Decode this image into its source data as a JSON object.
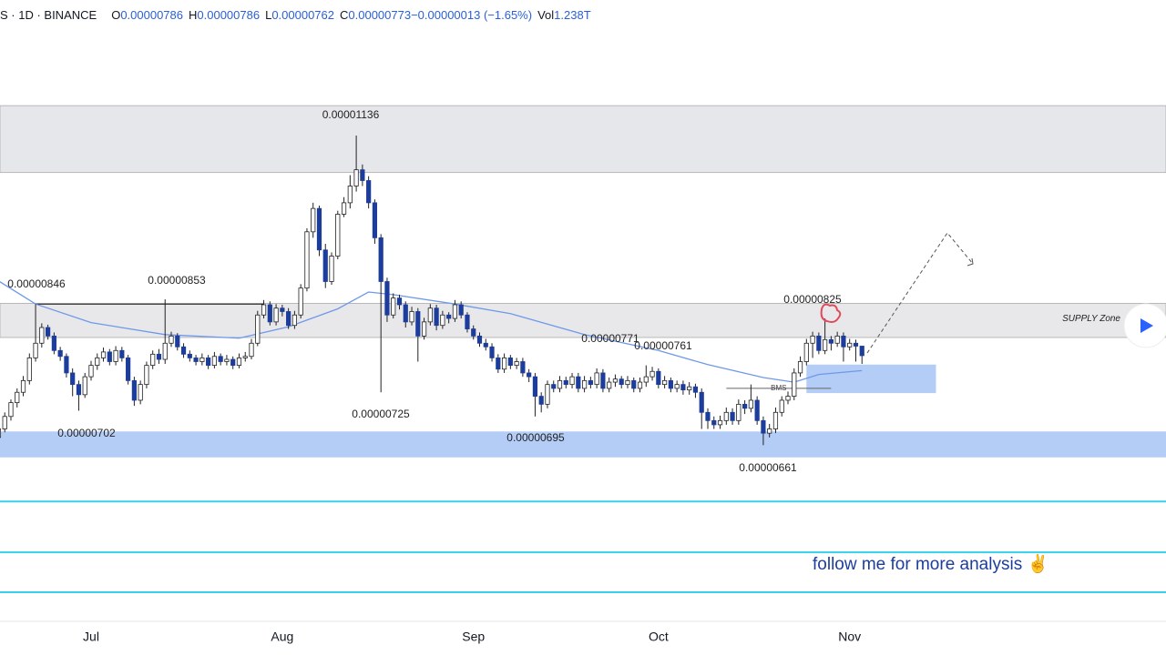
{
  "header": {
    "symbol": "S · 1D · BINANCE",
    "items": [
      {
        "k": "O",
        "v": "0.00000786"
      },
      {
        "k": "H",
        "v": "0.00000786"
      },
      {
        "k": "L",
        "v": "0.00000762"
      },
      {
        "k": "C",
        "v": "0.00000773"
      },
      {
        "k": "",
        "v": "−0.00000013 (−1.65%)"
      },
      {
        "k": "Vol",
        "v": "1.238T"
      }
    ]
  },
  "chart_data": {
    "type": "candlestick",
    "log": true,
    "ylim": [
      4.88e-06,
      1.44e-05
    ],
    "xlim": [
      0.23,
      189.3
    ],
    "up_color": "#ffffff",
    "down_color": "#1d3d9c",
    "xticks": [
      {
        "value": 15,
        "label": "Jul"
      },
      {
        "value": 46,
        "label": "Aug"
      },
      {
        "value": 77,
        "label": "Sep"
      },
      {
        "value": 107,
        "label": "Oct"
      },
      {
        "value": 138,
        "label": "Nov"
      }
    ],
    "ohlc": [
      [
        6.7e-06,
        6.84e-06,
        6.6e-06,
        6.8e-06
      ],
      [
        6.8e-06,
        7e-06,
        6.76e-06,
        6.95e-06
      ],
      [
        6.95e-06,
        7.16e-06,
        6.9e-06,
        7.12e-06
      ],
      [
        7.12e-06,
        7.3e-06,
        7.06e-06,
        7.25e-06
      ],
      [
        7.25e-06,
        7.46e-06,
        7.2e-06,
        7.4e-06
      ],
      [
        7.4e-06,
        7.76e-06,
        7.35e-06,
        7.7e-06
      ],
      [
        7.7e-06,
        8.46e-06,
        7.65e-06,
        7.9e-06
      ],
      [
        7.9e-06,
        8.18e-06,
        7.84e-06,
        8.12e-06
      ],
      [
        8.12e-06,
        8.16e-06,
        7.95e-06,
        8e-06
      ],
      [
        8e-06,
        8.05e-06,
        7.75e-06,
        7.8e-06
      ],
      [
        7.8e-06,
        7.85e-06,
        7.66e-06,
        7.72e-06
      ],
      [
        7.72e-06,
        7.76e-06,
        7.44e-06,
        7.5e-06
      ],
      [
        7.5e-06,
        7.56e-06,
        7.2e-06,
        7.35e-06
      ],
      [
        7.35e-06,
        7.4e-06,
        7.02e-06,
        7.22e-06
      ],
      [
        7.22e-06,
        7.5e-06,
        7.18e-06,
        7.45e-06
      ],
      [
        7.45e-06,
        7.66e-06,
        7.4e-06,
        7.6e-06
      ],
      [
        7.6e-06,
        7.76e-06,
        7.54e-06,
        7.7e-06
      ],
      [
        7.7e-06,
        7.84e-06,
        7.65e-06,
        7.78e-06
      ],
      [
        7.78e-06,
        7.82e-06,
        7.6e-06,
        7.65e-06
      ],
      [
        7.65e-06,
        7.86e-06,
        7.6e-06,
        7.8e-06
      ],
      [
        7.8e-06,
        7.85e-06,
        7.65e-06,
        7.7e-06
      ],
      [
        7.7e-06,
        7.74e-06,
        7.35e-06,
        7.4e-06
      ],
      [
        7.4e-06,
        7.45e-06,
        7.08e-06,
        7.15e-06
      ],
      [
        7.15e-06,
        7.4e-06,
        7.1e-06,
        7.35e-06
      ],
      [
        7.35e-06,
        7.65e-06,
        7.3e-06,
        7.6e-06
      ],
      [
        7.6e-06,
        7.8e-06,
        7.55e-06,
        7.75e-06
      ],
      [
        7.75e-06,
        7.82e-06,
        7.62e-06,
        7.68e-06
      ],
      [
        7.68e-06,
        8.53e-06,
        7.62e-06,
        7.9e-06
      ],
      [
        7.9e-06,
        8.06e-06,
        7.85e-06,
        8e-06
      ],
      [
        8e-06,
        8.04e-06,
        7.8e-06,
        7.85e-06
      ],
      [
        7.85e-06,
        7.9e-06,
        7.7e-06,
        7.75e-06
      ],
      [
        7.75e-06,
        7.8e-06,
        7.65e-06,
        7.7e-06
      ],
      [
        7.7e-06,
        7.74e-06,
        7.6e-06,
        7.65e-06
      ],
      [
        7.65e-06,
        7.76e-06,
        7.6e-06,
        7.7e-06
      ],
      [
        7.7e-06,
        7.74e-06,
        7.55e-06,
        7.6e-06
      ],
      [
        7.6e-06,
        7.78e-06,
        7.56e-06,
        7.72e-06
      ],
      [
        7.72e-06,
        7.76e-06,
        7.6e-06,
        7.65e-06
      ],
      [
        7.65e-06,
        7.74e-06,
        7.6e-06,
        7.68e-06
      ],
      [
        7.68e-06,
        7.72e-06,
        7.55e-06,
        7.6e-06
      ],
      [
        7.6e-06,
        7.76e-06,
        7.56e-06,
        7.7e-06
      ],
      [
        7.7e-06,
        7.78e-06,
        7.65e-06,
        7.72e-06
      ],
      [
        7.72e-06,
        7.96e-06,
        7.68e-06,
        7.9e-06
      ],
      [
        7.9e-06,
        8.36e-06,
        7.86e-06,
        8.3e-06
      ],
      [
        8.3e-06,
        8.52e-06,
        8.25e-06,
        8.45e-06
      ],
      [
        8.45e-06,
        8.5e-06,
        8.15e-06,
        8.2e-06
      ],
      [
        8.2e-06,
        8.46e-06,
        8.15e-06,
        8.4e-06
      ],
      [
        8.4e-06,
        8.45e-06,
        8.28e-06,
        8.35e-06
      ],
      [
        8.35e-06,
        8.4e-06,
        8.1e-06,
        8.15e-06
      ],
      [
        8.15e-06,
        8.36e-06,
        8.1e-06,
        8.3e-06
      ],
      [
        8.3e-06,
        8.76e-06,
        8.25e-06,
        8.7e-06
      ],
      [
        8.7e-06,
        9.66e-06,
        8.65e-06,
        9.6e-06
      ],
      [
        9.6e-06,
        1.01e-05,
        9.5e-06,
        1e-05
      ],
      [
        1e-05,
        1.005e-05,
        9.2e-06,
        9.3e-06
      ],
      [
        9.3e-06,
        9.4e-06,
        8.7e-06,
        8.8e-06
      ],
      [
        8.8e-06,
        9.26e-06,
        8.75e-06,
        9.2e-06
      ],
      [
        9.2e-06,
        9.96e-06,
        9.15e-06,
        9.9e-06
      ],
      [
        9.9e-06,
        1.02e-05,
        9.85e-06,
        1.01e-05
      ],
      [
        1.01e-05,
        1.06e-05,
        1e-05,
        1.04e-05
      ],
      [
        1.04e-05,
        1.136e-05,
        1.03e-05,
        1.07e-05
      ],
      [
        1.07e-05,
        1.08e-05,
        1.04e-05,
        1.05e-05
      ],
      [
        1.05e-05,
        1.058e-05,
        1e-05,
        1.01e-05
      ],
      [
        1.01e-05,
        1.016e-05,
        9.4e-06,
        9.5e-06
      ],
      [
        9.5e-06,
        9.56e-06,
        7.25e-06,
        8.8e-06
      ],
      [
        8.8e-06,
        8.86e-06,
        8.2e-06,
        8.3e-06
      ],
      [
        8.3e-06,
        8.62e-06,
        8.25e-06,
        8.55e-06
      ],
      [
        8.55e-06,
        8.6e-06,
        8.38e-06,
        8.45e-06
      ],
      [
        8.45e-06,
        8.5e-06,
        8.12e-06,
        8.2e-06
      ],
      [
        8.2e-06,
        8.42e-06,
        8.15e-06,
        8.35e-06
      ],
      [
        8.35e-06,
        8.4e-06,
        7.65e-06,
        8e-06
      ],
      [
        8e-06,
        8.26e-06,
        7.95e-06,
        8.2e-06
      ],
      [
        8.2e-06,
        8.46e-06,
        8.15e-06,
        8.4e-06
      ],
      [
        8.4e-06,
        8.45e-06,
        8.08e-06,
        8.15e-06
      ],
      [
        8.15e-06,
        8.36e-06,
        8.1e-06,
        8.3e-06
      ],
      [
        8.3e-06,
        8.34e-06,
        8.18e-06,
        8.25e-06
      ],
      [
        8.25e-06,
        8.52e-06,
        8.2e-06,
        8.45e-06
      ],
      [
        8.45e-06,
        8.5e-06,
        8.25e-06,
        8.3e-06
      ],
      [
        8.3e-06,
        8.34e-06,
        8.05e-06,
        8.1e-06
      ],
      [
        8.1e-06,
        8.15e-06,
        7.95e-06,
        8e-06
      ],
      [
        8e-06,
        8.05e-06,
        7.85e-06,
        7.9e-06
      ],
      [
        7.9e-06,
        7.96e-06,
        7.8e-06,
        7.85e-06
      ],
      [
        7.85e-06,
        7.9e-06,
        7.65e-06,
        7.7e-06
      ],
      [
        7.7e-06,
        7.75e-06,
        7.5e-06,
        7.55e-06
      ],
      [
        7.55e-06,
        7.76e-06,
        7.5e-06,
        7.7e-06
      ],
      [
        7.7e-06,
        7.74e-06,
        7.55e-06,
        7.6e-06
      ],
      [
        7.6e-06,
        7.7e-06,
        7.55e-06,
        7.65e-06
      ],
      [
        7.65e-06,
        7.7e-06,
        7.45e-06,
        7.5e-06
      ],
      [
        7.5e-06,
        7.55e-06,
        7.38e-06,
        7.45e-06
      ],
      [
        7.45e-06,
        7.5e-06,
        6.95e-06,
        7.2e-06
      ],
      [
        7.2e-06,
        7.25e-06,
        7e-06,
        7.1e-06
      ],
      [
        7.1e-06,
        7.4e-06,
        7.05e-06,
        7.35e-06
      ],
      [
        7.35e-06,
        7.4e-06,
        7.25e-06,
        7.3e-06
      ],
      [
        7.3e-06,
        7.46e-06,
        7.25e-06,
        7.4e-06
      ],
      [
        7.4e-06,
        7.45e-06,
        7.3e-06,
        7.35e-06
      ],
      [
        7.35e-06,
        7.5e-06,
        7.3e-06,
        7.45e-06
      ],
      [
        7.45e-06,
        7.5e-06,
        7.25e-06,
        7.3e-06
      ],
      [
        7.3e-06,
        7.46e-06,
        7.25e-06,
        7.4e-06
      ],
      [
        7.4e-06,
        7.45e-06,
        7.3e-06,
        7.35e-06
      ],
      [
        7.35e-06,
        7.56e-06,
        7.3e-06,
        7.5e-06
      ],
      [
        7.5e-06,
        7.55e-06,
        7.25e-06,
        7.3e-06
      ],
      [
        7.3e-06,
        7.44e-06,
        7.25e-06,
        7.38e-06
      ],
      [
        7.38e-06,
        7.48e-06,
        7.32e-06,
        7.42e-06
      ],
      [
        7.42e-06,
        7.46e-06,
        7.3e-06,
        7.35e-06
      ],
      [
        7.35e-06,
        7.46e-06,
        7.3e-06,
        7.4e-06
      ],
      [
        7.4e-06,
        7.44e-06,
        7.25e-06,
        7.3e-06
      ],
      [
        7.3e-06,
        7.44e-06,
        7.25e-06,
        7.38e-06
      ],
      [
        7.38e-06,
        7.6e-06,
        7.32e-06,
        7.45e-06
      ],
      [
        7.45e-06,
        7.58e-06,
        7.4e-06,
        7.52e-06
      ],
      [
        7.52e-06,
        7.56e-06,
        7.3e-06,
        7.35e-06
      ],
      [
        7.35e-06,
        7.46e-06,
        7.3e-06,
        7.4e-06
      ],
      [
        7.4e-06,
        7.44e-06,
        7.25e-06,
        7.3e-06
      ],
      [
        7.3e-06,
        7.4e-06,
        7.25e-06,
        7.35e-06
      ],
      [
        7.35e-06,
        7.4e-06,
        7.22e-06,
        7.28e-06
      ],
      [
        7.28e-06,
        7.38e-06,
        7.22e-06,
        7.32e-06
      ],
      [
        7.32e-06,
        7.36e-06,
        7.18e-06,
        7.25e-06
      ],
      [
        7.25e-06,
        7.3e-06,
        6.8e-06,
        7e-06
      ],
      [
        7e-06,
        7.05e-06,
        6.8e-06,
        6.9e-06
      ],
      [
        6.9e-06,
        6.95e-06,
        6.8e-06,
        6.85e-06
      ],
      [
        6.85e-06,
        6.96e-06,
        6.8e-06,
        6.9e-06
      ],
      [
        6.9e-06,
        7.06e-06,
        6.85e-06,
        7e-06
      ],
      [
        7e-06,
        7.05e-06,
        6.85e-06,
        6.9e-06
      ],
      [
        6.9e-06,
        7.16e-06,
        6.85e-06,
        7.1e-06
      ],
      [
        7.1e-06,
        7.15e-06,
        6.98e-06,
        7.05e-06
      ],
      [
        7.05e-06,
        7.35e-06,
        7e-06,
        7.15e-06
      ],
      [
        7.15e-06,
        7.2e-06,
        6.85e-06,
        6.9e-06
      ],
      [
        6.9e-06,
        6.95e-06,
        6.61e-06,
        6.75e-06
      ],
      [
        6.75e-06,
        6.86e-06,
        6.7e-06,
        6.8e-06
      ],
      [
        6.8e-06,
        7.06e-06,
        6.75e-06,
        7e-06
      ],
      [
        7e-06,
        7.2e-06,
        6.95e-06,
        7.15e-06
      ],
      [
        7.15e-06,
        7.26e-06,
        7.1e-06,
        7.2e-06
      ],
      [
        7.2e-06,
        7.56e-06,
        7.15e-06,
        7.5e-06
      ],
      [
        7.5e-06,
        7.72e-06,
        7.45e-06,
        7.65e-06
      ],
      [
        7.65e-06,
        7.96e-06,
        7.6e-06,
        7.9e-06
      ],
      [
        7.9e-06,
        8.06e-06,
        7.7e-06,
        8e-06
      ],
      [
        8e-06,
        8.05e-06,
        7.75e-06,
        7.8e-06
      ],
      [
        7.8e-06,
        8.25e-06,
        7.75e-06,
        7.95e-06
      ],
      [
        7.95e-06,
        8e-06,
        7.8e-06,
        7.9e-06
      ],
      [
        7.9e-06,
        8.06e-06,
        7.85e-06,
        8e-06
      ],
      [
        8e-06,
        8.05e-06,
        7.65e-06,
        7.85e-06
      ],
      [
        7.85e-06,
        7.96e-06,
        7.8e-06,
        7.9e-06
      ],
      [
        7.9e-06,
        7.95e-06,
        7.65e-06,
        7.86e-06
      ],
      [
        7.86e-06,
        7.86e-06,
        7.62e-06,
        7.73e-06
      ]
    ],
    "ma": {
      "color": "#6f98ea",
      "x": [
        0,
        6,
        15,
        27,
        39,
        47,
        55,
        60,
        64,
        74,
        83,
        95,
        107,
        115,
        124,
        129,
        133,
        140
      ],
      "values": [
        8.81e-06,
        8.46e-06,
        8.19e-06,
        8.02e-06,
        7.97e-06,
        8.13e-06,
        8.39e-06,
        8.64e-06,
        8.6e-06,
        8.46e-06,
        8.32e-06,
        8.02e-06,
        7.8e-06,
        7.61e-06,
        7.44e-06,
        7.38e-06,
        7.48e-06,
        7.53e-06
      ]
    },
    "zones": [
      {
        "low": 1.065e-05,
        "high": 1.197e-05,
        "color": "#e6e7ea"
      },
      {
        "low": 7.98e-06,
        "high": 8.47e-06,
        "color": "#e8e8ea",
        "label": "SUPPLY Zone"
      },
      {
        "low": 6.47e-06,
        "high": 6.77e-06,
        "color": "#b4cdf6"
      },
      {
        "low": 7.24e-06,
        "high": 7.61e-06,
        "color": "#b4cdf6",
        "from": 131,
        "to": 152
      }
    ],
    "levels": {
      "color": "#36d0ea",
      "values": [
        5.99e-06,
        5.48e-06,
        5.11e-06
      ]
    },
    "lines": [
      {
        "value": 8.46e-06,
        "from": 6,
        "to": 43
      },
      {
        "value": 7.3e-06,
        "from": 118,
        "to": 135,
        "label": "BMS"
      }
    ],
    "annotations": [
      "0.00000846",
      "0.00000853",
      "0.00001136",
      "0.00000702",
      "0.00000725",
      "0.00000771",
      "0.00000761",
      "0.00000695",
      "0.00000825",
      "0.00000661"
    ],
    "footer_note": "follow me for more analysis ✌"
  }
}
